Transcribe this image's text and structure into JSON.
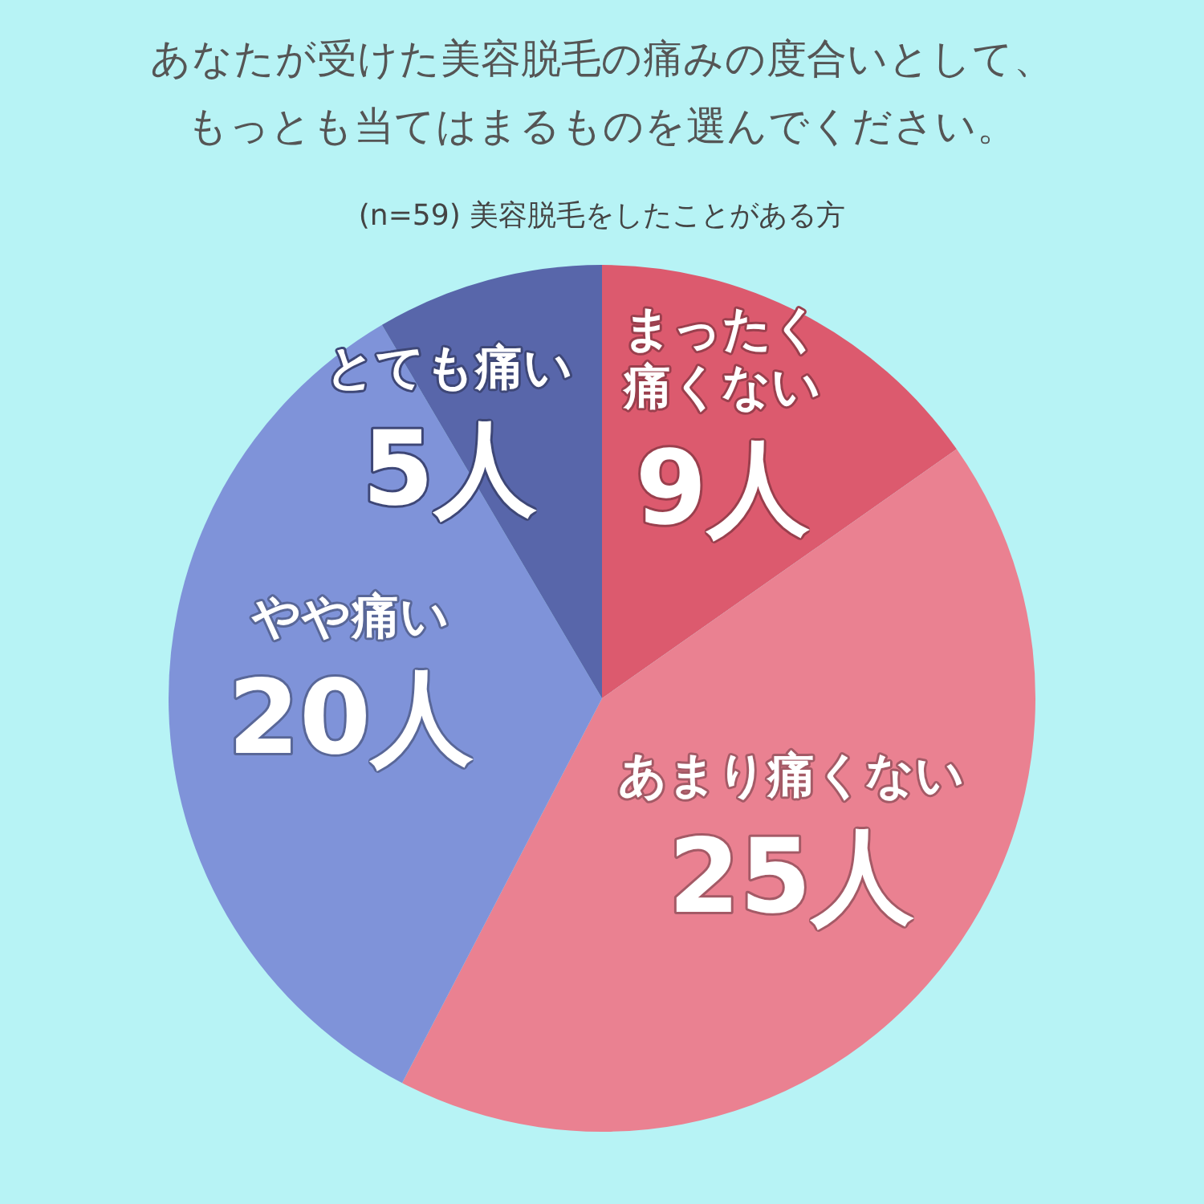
{
  "chart_data": {
    "type": "pie",
    "title": "あなたが受けた美容脱毛の痛みの度合いとして、もっとも当てはまるものを選んでください。",
    "subtitle": "(n=59) 美容脱毛をしたことがある方",
    "categories": [
      "まったく痛くない",
      "あまり痛くない",
      "やや痛い",
      "とても痛い"
    ],
    "values": [
      9,
      25,
      20,
      5
    ],
    "colors": [
      "#dc5a6e",
      "#ea8191",
      "#7f93d9",
      "#5866aa"
    ],
    "value_labels": [
      "9人",
      "25人",
      "20人",
      "5人"
    ]
  }
}
